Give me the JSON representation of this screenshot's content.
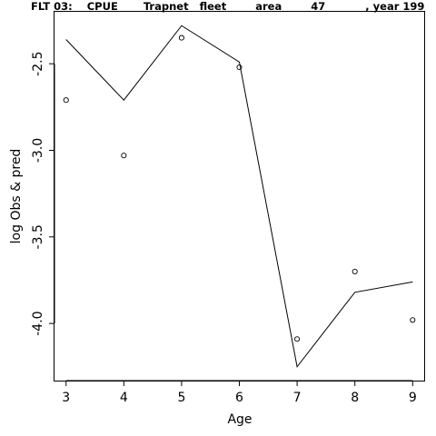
{
  "chart_data": {
    "type": "line",
    "title": "FLT 03:    CPUE       Trapnet   fleet        area        47           , year 199",
    "xlabel": "Age",
    "ylabel": "log Obs & pred",
    "xlim": [
      2.8,
      9.2
    ],
    "ylim": [
      -4.33,
      -2.2
    ],
    "x_ticks": [
      3,
      4,
      5,
      6,
      7,
      8,
      9
    ],
    "y_ticks": [
      -2.5,
      -3.0,
      -3.5,
      -4.0
    ],
    "y_tick_labels": [
      "-2.5",
      "-3.0",
      "-3.5",
      "-4.0"
    ],
    "grid": false,
    "series": [
      {
        "role": "predicted",
        "style": "line",
        "x": [
          3,
          4,
          5,
          6,
          7,
          8,
          9
        ],
        "y": [
          -2.36,
          -2.71,
          -2.28,
          -2.49,
          -4.25,
          -3.82,
          -3.76
        ]
      },
      {
        "role": "observed",
        "style": "points",
        "x": [
          3,
          4,
          5,
          6,
          7,
          8,
          9
        ],
        "y": [
          -2.71,
          -3.03,
          -2.35,
          -2.52,
          -4.09,
          -3.7,
          -3.98
        ]
      }
    ]
  }
}
